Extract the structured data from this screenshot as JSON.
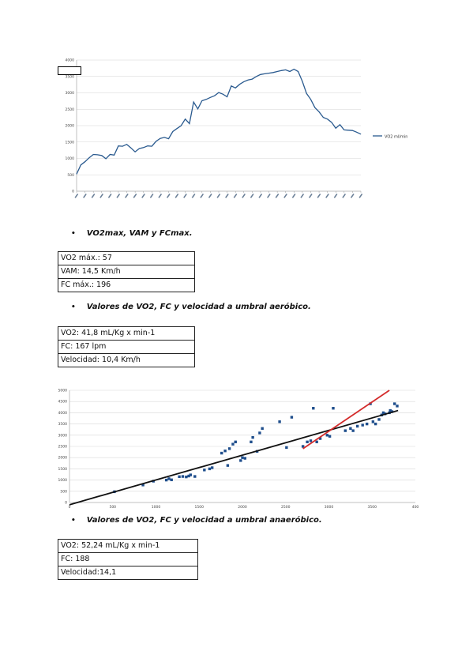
{
  "chart1": {
    "chart_data": {
      "type": "line",
      "title": "",
      "xlabel": "",
      "ylabel": "",
      "ylim": [
        0,
        4000
      ],
      "y_ticks": [
        "0",
        "500",
        "1000",
        "1500",
        "2000",
        "2500",
        "3000",
        "3500",
        "4000"
      ],
      "grid": true,
      "legend_position": "right",
      "series": [
        {
          "name": "VO2 ml/min",
          "color": "#2a5a8f",
          "values": [
            520,
            800,
            900,
            1020,
            1120,
            1110,
            1090,
            990,
            1120,
            1100,
            1380,
            1370,
            1430,
            1320,
            1200,
            1300,
            1330,
            1380,
            1370,
            1520,
            1610,
            1640,
            1600,
            1820,
            1910,
            2000,
            2200,
            2060,
            2720,
            2510,
            2760,
            2800,
            2860,
            2910,
            3010,
            2960,
            2880,
            3210,
            3150,
            3260,
            3340,
            3390,
            3420,
            3500,
            3560,
            3580,
            3600,
            3620,
            3650,
            3680,
            3700,
            3650,
            3720,
            3650,
            3350,
            2980,
            2800,
            2550,
            2420,
            2250,
            2200,
            2100,
            1920,
            2030,
            1870,
            1860,
            1850,
            1800,
            1740
          ]
        }
      ]
    }
  },
  "section1": {
    "bullet": "VO2max, VAM y FCmax.",
    "rows": [
      "VO2 máx.: 57",
      "VAM: 14,5 Km/h",
      "FC máx.: 196"
    ]
  },
  "section2": {
    "bullet": "Valores de VO2, FC y velocidad a umbral aeróbico.",
    "rows": [
      "VO2: 41,8 mL/Kg x min-1",
      "FC: 167 lpm",
      "Velocidad: 10,4 Km/h"
    ]
  },
  "chart2": {
    "chart_data": {
      "type": "scatter",
      "title": "",
      "xlabel": "",
      "ylabel": "",
      "xlim": [
        0,
        4000
      ],
      "ylim": [
        0,
        5000
      ],
      "x_ticks": [
        "0",
        "500",
        "1000",
        "1500",
        "2000",
        "2500",
        "3000",
        "3500",
        "400"
      ],
      "y_ticks": [
        "0",
        "500",
        "1000",
        "1500",
        "2000",
        "2500",
        "3000",
        "3500",
        "4000",
        "4500",
        "5000"
      ],
      "grid": true,
      "series": [
        {
          "name": "",
          "color": "#1f4e8c",
          "points": [
            [
              520,
              480
            ],
            [
              850,
              780
            ],
            [
              970,
              950
            ],
            [
              1120,
              1000
            ],
            [
              1150,
              1060
            ],
            [
              1180,
              1010
            ],
            [
              1270,
              1150
            ],
            [
              1310,
              1160
            ],
            [
              1350,
              1140
            ],
            [
              1380,
              1180
            ],
            [
              1400,
              1230
            ],
            [
              1450,
              1160
            ],
            [
              1560,
              1450
            ],
            [
              1620,
              1500
            ],
            [
              1650,
              1550
            ],
            [
              1760,
              2200
            ],
            [
              1800,
              2300
            ],
            [
              1830,
              1650
            ],
            [
              1850,
              2400
            ],
            [
              1890,
              2600
            ],
            [
              1920,
              2700
            ],
            [
              1980,
              1870
            ],
            [
              2000,
              2000
            ],
            [
              2030,
              1970
            ],
            [
              2100,
              2700
            ],
            [
              2120,
              2900
            ],
            [
              2170,
              2280
            ],
            [
              2200,
              3100
            ],
            [
              2230,
              3300
            ],
            [
              2430,
              3600
            ],
            [
              2510,
              2450
            ],
            [
              2570,
              3800
            ],
            [
              2700,
              2500
            ],
            [
              2750,
              2700
            ],
            [
              2790,
              2750
            ],
            [
              2820,
              4200
            ],
            [
              2860,
              2700
            ],
            [
              2900,
              2850
            ],
            [
              2980,
              3000
            ],
            [
              3010,
              2950
            ],
            [
              3050,
              4200
            ],
            [
              3190,
              3200
            ],
            [
              3250,
              3300
            ],
            [
              3280,
              3200
            ],
            [
              3330,
              3400
            ],
            [
              3390,
              3450
            ],
            [
              3440,
              3500
            ],
            [
              3480,
              4400
            ],
            [
              3510,
              3600
            ],
            [
              3540,
              3500
            ],
            [
              3580,
              3700
            ],
            [
              3610,
              3900
            ],
            [
              3630,
              4000
            ],
            [
              3650,
              3950
            ],
            [
              3700,
              4000
            ],
            [
              3710,
              4100
            ],
            [
              3730,
              4050
            ],
            [
              3760,
              4400
            ],
            [
              3790,
              4300
            ]
          ]
        }
      ],
      "trend_lines": [
        {
          "color": "#111111",
          "from": [
            0,
            -100
          ],
          "to": [
            3800,
            4100
          ]
        },
        {
          "color": "#d42b2b",
          "from": [
            2700,
            2400
          ],
          "to": [
            3700,
            5000
          ]
        }
      ]
    }
  },
  "section3": {
    "bullet": "Valores de VO2, FC y velocidad a umbral anaeróbico.",
    "rows": [
      "VO2: 52,24 mL/Kg x min-1",
      "FC: 188",
      "Velocidad:14,1"
    ]
  }
}
